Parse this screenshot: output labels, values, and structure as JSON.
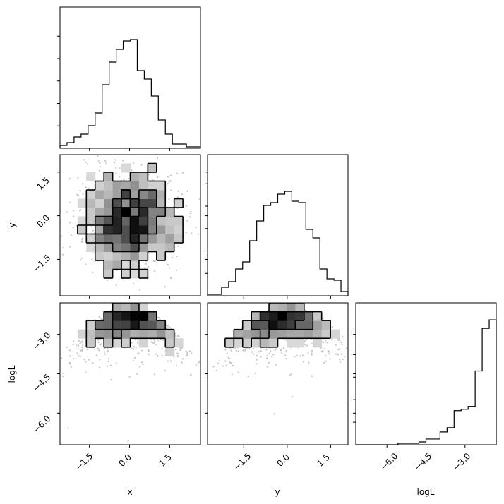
{
  "chart_data": {
    "type": "corner",
    "variables": [
      "x",
      "y",
      "logL"
    ],
    "ranges": {
      "x": [
        -2.6,
        2.65
      ],
      "y": [
        -2.75,
        2.1
      ],
      "logL": [
        -7.2,
        -1.8
      ]
    },
    "ticks": {
      "x": {
        "values": [
          -1.5,
          0.0,
          1.5
        ],
        "labels": [
          "−1.5",
          "0.0",
          "1.5"
        ]
      },
      "y": {
        "values": [
          -1.5,
          0.0,
          1.5
        ],
        "labels": [
          "−1.5",
          "0.0",
          "1.5"
        ]
      },
      "logL": {
        "values": [
          -6.0,
          -4.5,
          -3.0
        ],
        "labels": [
          "−6.0",
          "−4.5",
          "−3.0"
        ]
      }
    },
    "histograms": {
      "x": [
        0.02,
        0.04,
        0.08,
        0.1,
        0.16,
        0.25,
        0.45,
        0.61,
        0.7,
        0.76,
        0.77,
        0.55,
        0.49,
        0.37,
        0.2,
        0.1,
        0.03,
        0.03,
        0.01,
        0.01
      ],
      "y": [
        0.01,
        0.01,
        0.06,
        0.1,
        0.19,
        0.24,
        0.39,
        0.53,
        0.64,
        0.66,
        0.72,
        0.74,
        0.67,
        0.66,
        0.47,
        0.41,
        0.19,
        0.12,
        0.11,
        0.03
      ],
      "logL": [
        0.0,
        0.0,
        0.0,
        0.0,
        0.0,
        0.0,
        0.01,
        0.01,
        0.01,
        0.02,
        0.04,
        0.04,
        0.09,
        0.12,
        0.24,
        0.25,
        0.27,
        0.52,
        0.82,
        0.88
      ]
    }
  }
}
